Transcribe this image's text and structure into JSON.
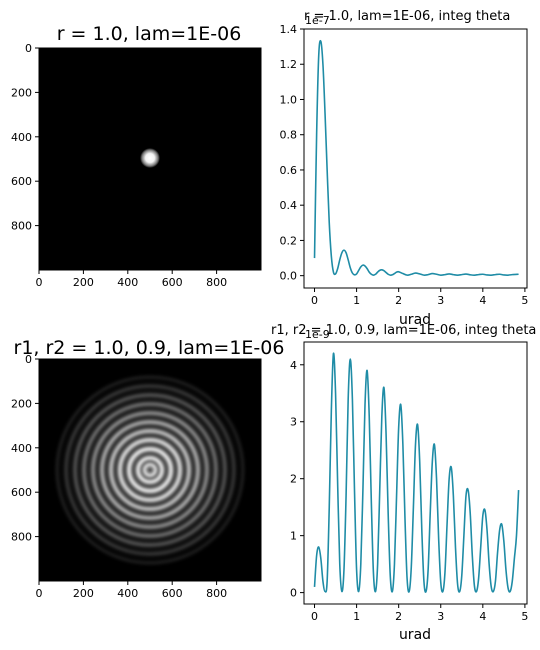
{
  "colors": {
    "line": "#1f8ca6",
    "axes": "#000000",
    "background": "#ffffff",
    "image_bg": "#000000"
  },
  "chart_data": [
    {
      "type": "heatmap",
      "title": "r = 1.0, lam=1E-06",
      "colormap": "gray",
      "xlim": [
        0,
        1000
      ],
      "ylim": [
        1000,
        0
      ],
      "xticks": [
        "0",
        "200",
        "400",
        "600",
        "800"
      ],
      "yticks": [
        "0",
        "200",
        "400",
        "600",
        "800"
      ],
      "description_values": {
        "center": [
          500,
          500
        ],
        "spot_radius": 15
      }
    },
    {
      "type": "line",
      "title": "r = 1.0, lam=1E-06, integ theta",
      "xlabel": "urad",
      "ylabel": "",
      "exponent_label": "1e-7",
      "xlim": [
        -0.25,
        5.05
      ],
      "ylim": [
        -0.07,
        1.4
      ],
      "xticks": [
        "0",
        "1",
        "2",
        "3",
        "4",
        "5"
      ],
      "yticks": [
        "0.0",
        "0.2",
        "0.4",
        "0.6",
        "0.8",
        "1.0",
        "1.2",
        "1.4"
      ],
      "series": [
        {
          "x": [
            0.0,
            0.05,
            0.1,
            0.15,
            0.2,
            0.25,
            0.3,
            0.35,
            0.4,
            0.45,
            0.5,
            0.55,
            0.6,
            0.65,
            0.7,
            0.75,
            0.8,
            0.85,
            0.9,
            0.95,
            1.0,
            1.05,
            1.1,
            1.15,
            1.2,
            1.25,
            1.3,
            1.35,
            1.4,
            1.45,
            1.5,
            1.55,
            1.6,
            1.65,
            1.7,
            1.75,
            1.8,
            1.85,
            1.9,
            1.95,
            2.0,
            2.1,
            2.2,
            2.3,
            2.4,
            2.5,
            2.6,
            2.7,
            2.8,
            2.9,
            3.0,
            3.1,
            3.2,
            3.3,
            3.4,
            3.5,
            3.6,
            3.7,
            3.8,
            3.9,
            4.0,
            4.1,
            4.2,
            4.3,
            4.4,
            4.5,
            4.6,
            4.7,
            4.85
          ],
          "y": [
            0.1,
            0.8,
            1.25,
            1.33,
            1.2,
            0.92,
            0.6,
            0.3,
            0.11,
            0.02,
            0.01,
            0.04,
            0.09,
            0.13,
            0.145,
            0.13,
            0.09,
            0.045,
            0.015,
            0.005,
            0.01,
            0.03,
            0.05,
            0.06,
            0.055,
            0.04,
            0.02,
            0.008,
            0.003,
            0.008,
            0.02,
            0.03,
            0.033,
            0.028,
            0.018,
            0.008,
            0.003,
            0.005,
            0.012,
            0.02,
            0.022,
            0.012,
            0.003,
            0.008,
            0.015,
            0.01,
            0.003,
            0.006,
            0.012,
            0.008,
            0.003,
            0.006,
            0.01,
            0.006,
            0.003,
            0.006,
            0.009,
            0.005,
            0.003,
            0.006,
            0.008,
            0.004,
            0.003,
            0.006,
            0.008,
            0.004,
            0.003,
            0.006,
            0.008
          ]
        }
      ]
    },
    {
      "type": "heatmap",
      "title": "r1, r2 = 1.0, 0.9, lam=1E-06",
      "colormap": "gray",
      "xlim": [
        0,
        1000
      ],
      "ylim": [
        1000,
        0
      ],
      "xticks": [
        "0",
        "200",
        "400",
        "600",
        "800"
      ],
      "yticks": [
        "0",
        "200",
        "400",
        "600",
        "800"
      ],
      "description_values": {
        "center": [
          500,
          500
        ],
        "ring_count": 9
      }
    },
    {
      "type": "line",
      "title": "r1, r2 = 1.0, 0.9, lam=1E-06, integ theta",
      "xlabel": "urad",
      "ylabel": "",
      "exponent_label": "1e-9",
      "xlim": [
        -0.25,
        5.05
      ],
      "ylim": [
        -0.2,
        4.4
      ],
      "xticks": [
        "0",
        "1",
        "2",
        "3",
        "4",
        "5"
      ],
      "yticks": [
        "0",
        "1",
        "2",
        "3",
        "4"
      ],
      "series": [
        {
          "x": [
            0.0,
            0.05,
            0.1,
            0.15,
            0.2,
            0.25,
            0.3,
            0.35,
            0.4,
            0.45,
            0.5,
            0.55,
            0.6,
            0.65,
            0.7,
            0.75,
            0.8,
            0.85,
            0.9,
            0.95,
            1.0,
            1.05,
            1.1,
            1.15,
            1.2,
            1.25,
            1.3,
            1.35,
            1.4,
            1.45,
            1.5,
            1.55,
            1.6,
            1.65,
            1.7,
            1.75,
            1.8,
            1.85,
            1.9,
            1.95,
            2.0,
            2.05,
            2.1,
            2.15,
            2.2,
            2.25,
            2.3,
            2.35,
            2.4,
            2.45,
            2.5,
            2.55,
            2.6,
            2.65,
            2.7,
            2.75,
            2.8,
            2.85,
            2.9,
            2.95,
            3.0,
            3.05,
            3.1,
            3.15,
            3.2,
            3.25,
            3.3,
            3.35,
            3.4,
            3.45,
            3.5,
            3.55,
            3.6,
            3.65,
            3.7,
            3.75,
            3.8,
            3.85,
            3.9,
            3.95,
            4.0,
            4.05,
            4.1,
            4.15,
            4.2,
            4.25,
            4.3,
            4.35,
            4.4,
            4.45,
            4.5,
            4.55,
            4.6,
            4.65,
            4.7,
            4.75,
            4.8,
            4.85
          ],
          "y": [
            0.1,
            0.65,
            0.8,
            0.6,
            0.2,
            0.02,
            0.2,
            1.5,
            3.2,
            4.2,
            3.5,
            1.9,
            0.5,
            0.02,
            0.4,
            1.7,
            3.4,
            4.1,
            3.4,
            1.8,
            0.4,
            0.02,
            0.5,
            1.8,
            3.3,
            3.9,
            3.1,
            1.6,
            0.35,
            0.02,
            0.5,
            1.8,
            3.1,
            3.6,
            2.8,
            1.4,
            0.3,
            0.02,
            0.5,
            1.7,
            2.9,
            3.3,
            2.6,
            1.3,
            0.25,
            0.02,
            0.45,
            1.5,
            2.6,
            2.95,
            2.3,
            1.1,
            0.2,
            0.02,
            0.4,
            1.4,
            2.3,
            2.6,
            2.0,
            0.95,
            0.18,
            0.02,
            0.35,
            1.2,
            2.0,
            2.2,
            1.7,
            0.8,
            0.15,
            0.02,
            0.3,
            1.0,
            1.7,
            1.8,
            1.4,
            0.65,
            0.12,
            0.02,
            0.25,
            0.8,
            1.35,
            1.45,
            1.1,
            0.5,
            0.1,
            0.02,
            0.2,
            0.7,
            1.1,
            1.2,
            0.9,
            0.4,
            0.08,
            0.02,
            0.2,
            0.6,
            1.0,
            1.8
          ]
        }
      ]
    }
  ]
}
